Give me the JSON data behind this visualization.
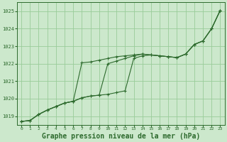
{
  "background_color": "#cce8cc",
  "plot_bg_color": "#cce8cc",
  "grid_color": "#99cc99",
  "line_color": "#2d6a2d",
  "xlabel": "Graphe pression niveau de la mer (hPa)",
  "xlabel_fontsize": 7.0,
  "ylim": [
    1018.5,
    1025.5
  ],
  "xlim": [
    -0.5,
    23.5
  ],
  "yticks": [
    1019,
    1020,
    1021,
    1022,
    1023,
    1024,
    1025
  ],
  "xticks": [
    0,
    1,
    2,
    3,
    4,
    5,
    6,
    7,
    8,
    9,
    10,
    11,
    12,
    13,
    14,
    15,
    16,
    17,
    18,
    19,
    20,
    21,
    22,
    23
  ],
  "series": [
    [
      1018.7,
      1018.75,
      1019.1,
      1019.35,
      1019.55,
      1019.75,
      1019.85,
      1022.05,
      1022.1,
      1022.2,
      1022.3,
      1022.4,
      1022.45,
      1022.5,
      1022.55,
      1022.5,
      1022.45,
      1022.4,
      1022.35,
      1022.55,
      1023.1,
      1023.3,
      1024.0,
      1025.05
    ],
    [
      1018.7,
      1018.75,
      1019.1,
      1019.35,
      1019.55,
      1019.75,
      1019.85,
      1020.05,
      1020.15,
      1020.2,
      1022.0,
      1022.15,
      1022.3,
      1022.45,
      1022.55,
      1022.5,
      1022.45,
      1022.4,
      1022.35,
      1022.55,
      1023.1,
      1023.3,
      1024.0,
      1025.05
    ],
    [
      1018.7,
      1018.75,
      1019.1,
      1019.35,
      1019.55,
      1019.75,
      1019.85,
      1020.05,
      1020.15,
      1020.2,
      1020.25,
      1020.35,
      1020.45,
      1022.3,
      1022.45,
      1022.5,
      1022.45,
      1022.4,
      1022.35,
      1022.55,
      1023.1,
      1023.3,
      1024.0,
      1025.05
    ]
  ]
}
